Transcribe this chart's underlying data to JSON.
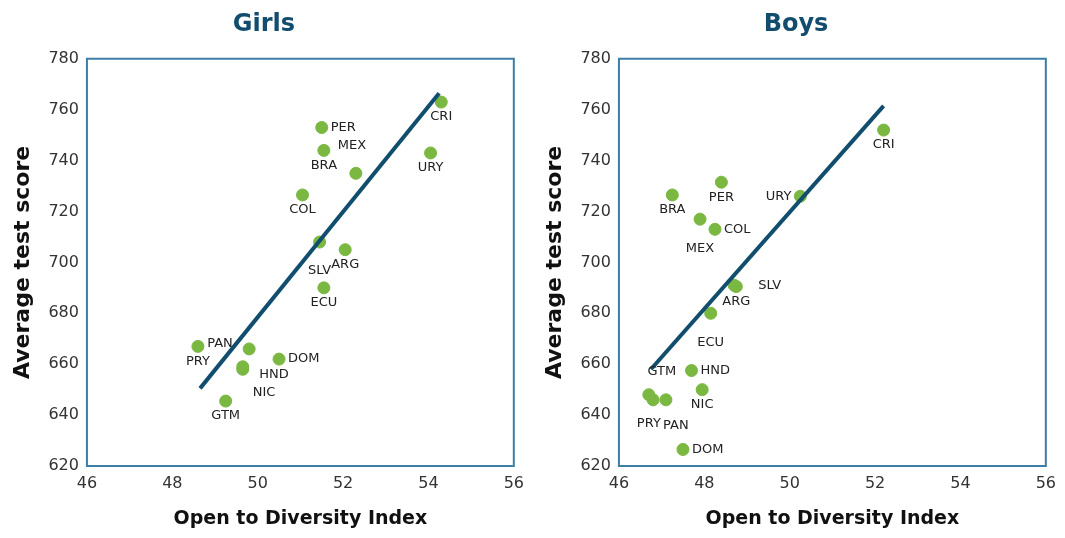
{
  "chart_data": [
    {
      "type": "scatter",
      "title": "Girls",
      "xlabel": "Open to Diversity Index",
      "ylabel": "Average test score",
      "xlim": [
        46,
        56
      ],
      "xticks": [
        46,
        48,
        50,
        52,
        54,
        56
      ],
      "ylim": [
        620,
        780
      ],
      "yticks": [
        620,
        640,
        660,
        680,
        700,
        720,
        740,
        760,
        780
      ],
      "grid": false,
      "series": [
        {
          "marker": "circle",
          "color": "#7ab842",
          "x": [
            54.3,
            51.5,
            51.55,
            52.3,
            54.05,
            51.05,
            51.45,
            52.05,
            51.55,
            48.6,
            49.8,
            50.5,
            49.65,
            49.65,
            49.25
          ],
          "values": [
            763,
            753,
            744,
            735,
            743,
            726.5,
            708,
            705,
            690,
            667,
            666,
            662,
            659,
            658,
            645.5
          ]
        },
        {
          "type": "line",
          "marker": "none",
          "color": "#114e6e",
          "x": [
            48.65,
            54.25
          ],
          "values": [
            650.5,
            766.5
          ]
        }
      ],
      "annotations": [
        {
          "text": "CRI",
          "x": 54.3,
          "y": 763
        },
        {
          "text": "PER",
          "x": 51.5,
          "y": 753
        },
        {
          "text": "BRA",
          "x": 51.55,
          "y": 744
        },
        {
          "text": "MEX",
          "x": 52.3,
          "y": 735
        },
        {
          "text": "URY",
          "x": 54.05,
          "y": 743
        },
        {
          "text": "COL",
          "x": 51.05,
          "y": 726.5
        },
        {
          "text": "SLV",
          "x": 51.45,
          "y": 708
        },
        {
          "text": "ARG",
          "x": 52.05,
          "y": 705
        },
        {
          "text": "ECU",
          "x": 51.55,
          "y": 690
        },
        {
          "text": "PRY",
          "x": 48.6,
          "y": 667
        },
        {
          "text": "HND",
          "x": 49.8,
          "y": 666
        },
        {
          "text": "DOM",
          "x": 50.5,
          "y": 662
        },
        {
          "text": "NIC",
          "x": 49.65,
          "y": 659
        },
        {
          "text": "PAN",
          "x": 49.65,
          "y": 658
        },
        {
          "text": "GTM",
          "x": 49.25,
          "y": 645.5
        }
      ]
    },
    {
      "type": "scatter",
      "title": "Boys",
      "xlabel": "Open to Diversity Index",
      "ylabel": "Average test score",
      "xlim": [
        46,
        56
      ],
      "xticks": [
        46,
        48,
        50,
        52,
        54,
        56
      ],
      "ylim": [
        620,
        780
      ],
      "yticks": [
        620,
        640,
        660,
        680,
        700,
        720,
        740,
        760,
        780
      ],
      "grid": false,
      "series": [
        {
          "marker": "circle",
          "color": "#7ab842",
          "x": [
            52.2,
            48.4,
            47.25,
            47.9,
            48.25,
            50.25,
            48.75,
            48.7,
            48.15,
            47.7,
            47.95,
            46.7,
            46.8,
            47.1,
            47.5
          ],
          "values": [
            752,
            731.5,
            726.5,
            717,
            713,
            726,
            690.5,
            691,
            680,
            657.5,
            650,
            648,
            646,
            646,
            626.5
          ]
        },
        {
          "type": "line",
          "marker": "none",
          "color": "#114e6e",
          "x": [
            46.75,
            52.2
          ],
          "values": [
            658,
            761.5
          ]
        }
      ],
      "annotations": [
        {
          "text": "CRI",
          "x": 52.2,
          "y": 752
        },
        {
          "text": "PER",
          "x": 48.4,
          "y": 731.5
        },
        {
          "text": "BRA",
          "x": 47.25,
          "y": 726.5
        },
        {
          "text": "MEX",
          "x": 47.9,
          "y": 717
        },
        {
          "text": "COL",
          "x": 48.25,
          "y": 713
        },
        {
          "text": "URY",
          "x": 50.25,
          "y": 726
        },
        {
          "text": "ARG",
          "x": 48.75,
          "y": 690.5
        },
        {
          "text": "SLV",
          "x": 48.7,
          "y": 691
        },
        {
          "text": "ECU",
          "x": 48.15,
          "y": 680
        },
        {
          "text": "HND",
          "x": 47.7,
          "y": 657.5
        },
        {
          "text": "NIC",
          "x": 47.95,
          "y": 650
        },
        {
          "text": "PRY",
          "x": 46.7,
          "y": 648
        },
        {
          "text": "PAN",
          "x": 46.8,
          "y": 646
        },
        {
          "text": "GTM",
          "x": 47.1,
          "y": 646
        },
        {
          "text": "DOM",
          "x": 47.5,
          "y": 626.5
        }
      ]
    }
  ]
}
